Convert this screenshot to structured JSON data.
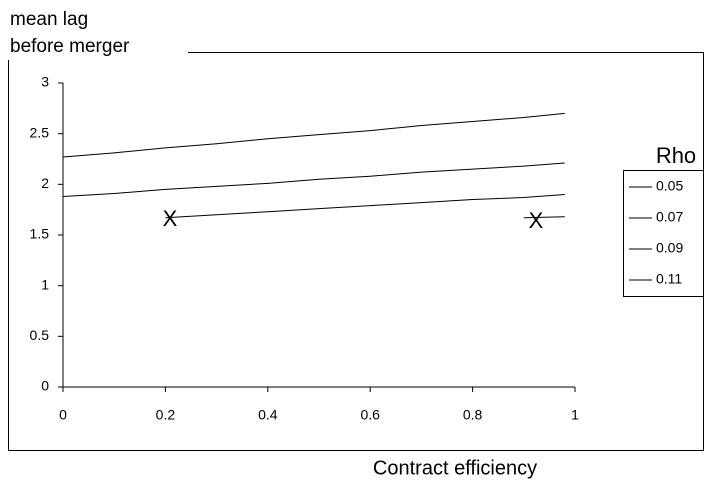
{
  "chart_data": {
    "type": "line",
    "ylabel": [
      "mean lag",
      "before merger"
    ],
    "xlabel": "Contract efficiency",
    "legend_title": "Rho",
    "legend_position": "right",
    "x": [
      0,
      0.1,
      0.2,
      0.3,
      0.4,
      0.5,
      0.6,
      0.7,
      0.8,
      0.9,
      0.98
    ],
    "series": [
      {
        "name": "0.05",
        "color": "#000000",
        "values": [
          2.27,
          2.31,
          2.36,
          2.4,
          2.45,
          2.49,
          2.53,
          2.58,
          2.62,
          2.66,
          2.7
        ]
      },
      {
        "name": "0.07",
        "color": "#000000",
        "values": [
          1.88,
          1.91,
          1.95,
          1.98,
          2.01,
          2.05,
          2.08,
          2.12,
          2.15,
          2.18,
          2.21
        ]
      },
      {
        "name": "0.09",
        "color": "#000000",
        "values": [
          null,
          null,
          1.67,
          1.7,
          1.73,
          1.76,
          1.79,
          1.82,
          1.85,
          1.87,
          1.9
        ]
      },
      {
        "name": "0.11",
        "color": "#000000",
        "values": [
          null,
          null,
          null,
          null,
          null,
          null,
          null,
          null,
          null,
          1.67,
          1.68
        ]
      }
    ],
    "annotations": [
      "X",
      "X"
    ],
    "xlim": [
      0,
      1
    ],
    "xticks": [
      0,
      0.2,
      0.4,
      0.6,
      0.8,
      1
    ],
    "ylim": [
      0,
      3
    ],
    "yticks": [
      0,
      0.5,
      1,
      1.5,
      2,
      2.5,
      3
    ],
    "grid": false
  }
}
